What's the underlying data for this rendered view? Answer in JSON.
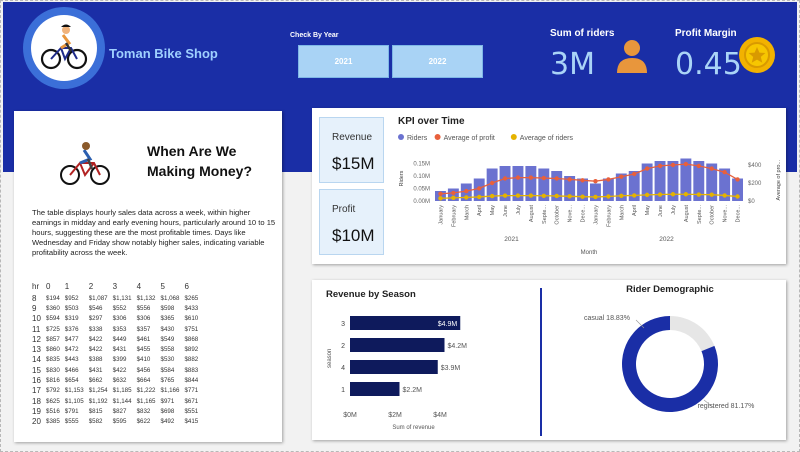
{
  "header": {
    "shop_name": "Toman Bike Shop",
    "year_filter_label": "Check By Year",
    "years": [
      "2021",
      "2022"
    ],
    "kpis": [
      {
        "title": "Sum of riders",
        "value": "3M",
        "icon": "person-icon"
      },
      {
        "title": "Profit Margin",
        "value": "0.45",
        "icon": "coin-icon"
      }
    ]
  },
  "when_panel": {
    "title_line1": "When Are We",
    "title_line2": "Making Money?",
    "description": "The table displays hourly sales data across a week, within higher earnings in midday and early evening hours, particularly around 10 to 15 hours, suggesting these are the most profitable times. Days like Wednesday and Friday show notably higher sales, indicating variable profitability across the week.",
    "table": {
      "headers": [
        "hr",
        "0",
        "1",
        "2",
        "3",
        "4",
        "5",
        "6"
      ],
      "rows": [
        [
          "8",
          "$194",
          "$952",
          "$1,087",
          "$1,131",
          "$1,132",
          "$1,068",
          "$265"
        ],
        [
          "9",
          "$360",
          "$503",
          "$546",
          "$552",
          "$556",
          "$598",
          "$433"
        ],
        [
          "10",
          "$594",
          "$319",
          "$297",
          "$306",
          "$306",
          "$365",
          "$610"
        ],
        [
          "11",
          "$725",
          "$376",
          "$338",
          "$353",
          "$357",
          "$430",
          "$751"
        ],
        [
          "12",
          "$857",
          "$477",
          "$422",
          "$449",
          "$461",
          "$549",
          "$868"
        ],
        [
          "13",
          "$860",
          "$472",
          "$422",
          "$431",
          "$455",
          "$558",
          "$892"
        ],
        [
          "14",
          "$835",
          "$443",
          "$388",
          "$399",
          "$410",
          "$530",
          "$882"
        ],
        [
          "15",
          "$830",
          "$466",
          "$431",
          "$422",
          "$456",
          "$584",
          "$883"
        ],
        [
          "16",
          "$816",
          "$654",
          "$662",
          "$632",
          "$664",
          "$765",
          "$844"
        ],
        [
          "17",
          "$792",
          "$1,153",
          "$1,254",
          "$1,185",
          "$1,222",
          "$1,166",
          "$771"
        ],
        [
          "18",
          "$625",
          "$1,105",
          "$1,192",
          "$1,144",
          "$1,165",
          "$971",
          "$671"
        ],
        [
          "19",
          "$516",
          "$791",
          "$815",
          "$827",
          "$832",
          "$698",
          "$551"
        ],
        [
          "20",
          "$385",
          "$555",
          "$582",
          "$595",
          "$622",
          "$492",
          "$415"
        ]
      ]
    }
  },
  "summary_cards": [
    {
      "label": "Revenue",
      "value": "$15M"
    },
    {
      "label": "Profit",
      "value": "$10M"
    }
  ],
  "chart_data": [
    {
      "type": "bar",
      "title": "KPI over Time",
      "xlabel": "Month",
      "ylabel": "Riders",
      "y2label": "Average of pro...",
      "legend": [
        "Riders",
        "Average of profit",
        "Average of riders"
      ],
      "legend_position": "top-left",
      "x_groups": [
        {
          "label": "2021",
          "start": 0,
          "end": 11
        },
        {
          "label": "2022",
          "start": 12,
          "end": 23
        }
      ],
      "categories": [
        "January",
        "February",
        "March",
        "April",
        "May",
        "June",
        "July",
        "August",
        "Septe...",
        "October",
        "Nove...",
        "Dece...",
        "January",
        "February",
        "March",
        "April",
        "May",
        "June",
        "July",
        "August",
        "Septe...",
        "October",
        "Nove...",
        "Dece..."
      ],
      "yticks": [
        "0.00M",
        "0.05M",
        "0.10M",
        "0.15M"
      ],
      "ylim": [
        0,
        0.18
      ],
      "y2ticks": [
        "$0",
        "$200",
        "$400"
      ],
      "y2lim": [
        0,
        500
      ],
      "series": [
        {
          "name": "Riders",
          "axis": "left",
          "color": "#6b72d0",
          "values": [
            0.04,
            0.05,
            0.07,
            0.09,
            0.13,
            0.14,
            0.14,
            0.14,
            0.13,
            0.12,
            0.1,
            0.09,
            0.07,
            0.09,
            0.11,
            0.12,
            0.15,
            0.16,
            0.16,
            0.17,
            0.16,
            0.15,
            0.13,
            0.09
          ]
        },
        {
          "name": "Average of profit",
          "axis": "right",
          "color": "#e8603c",
          "values": [
            80,
            90,
            110,
            140,
            200,
            250,
            260,
            260,
            255,
            250,
            240,
            230,
            220,
            240,
            270,
            300,
            360,
            390,
            400,
            410,
            390,
            360,
            320,
            240
          ]
        },
        {
          "name": "Average of riders",
          "axis": "right",
          "color": "#e5b300",
          "values": [
            30,
            35,
            40,
            45,
            55,
            60,
            60,
            60,
            58,
            56,
            52,
            48,
            45,
            50,
            58,
            62,
            68,
            72,
            75,
            75,
            72,
            70,
            62,
            50
          ]
        }
      ]
    },
    {
      "type": "bar",
      "orientation": "horizontal",
      "title": "Revenue by Season",
      "xlabel": "Sum of revenue",
      "ylabel": "season",
      "categories": [
        "3",
        "2",
        "4",
        "1"
      ],
      "values": [
        4.9,
        4.2,
        3.9,
        2.2
      ],
      "data_labels": [
        "$4.9M",
        "$4.2M",
        "$3.9M",
        "$2.2M"
      ],
      "xticks": [
        "$0M",
        "$2M",
        "$4M"
      ],
      "xlim": [
        0,
        5.2
      ],
      "color": "#0e1a5c"
    },
    {
      "type": "pie",
      "title": "Rider Demographic",
      "labels": [
        "casual",
        "registered"
      ],
      "values": [
        18.83,
        81.17
      ],
      "data_labels": [
        "casual 18.83%",
        "registered 81.17%"
      ],
      "colors": [
        "#e6e6e6",
        "#1a2ea6"
      ]
    }
  ]
}
